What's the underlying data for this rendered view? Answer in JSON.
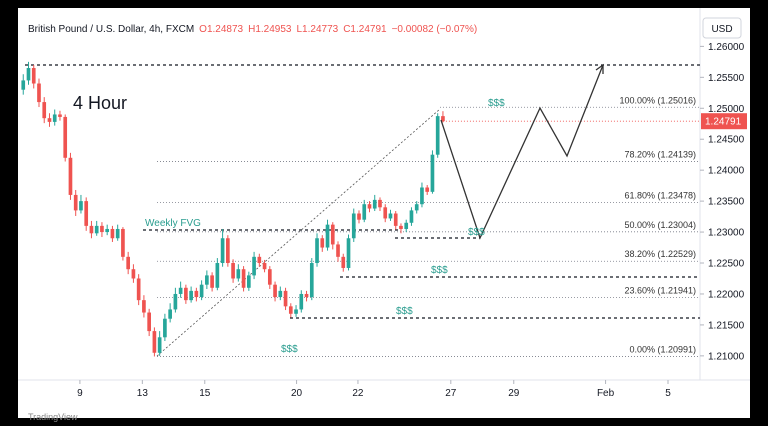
{
  "chart_data": {
    "type": "candlestick",
    "title": "British Pound / U.S. Dollar, 4h, FXCM",
    "subtitle": [
      "O1.24873",
      "H1.24953",
      "L1.24773",
      "C1.24791",
      "−0.00082 (−0.07%)"
    ],
    "currency": "USD",
    "timeframe_label": "4 Hour",
    "watermark": "TradingView",
    "up_color": "#26a69a",
    "down_color": "#ef5350",
    "open": [
      1.253,
      1.2545,
      1.2565,
      1.254,
      1.251,
      1.2484,
      1.2478,
      1.249,
      1.2486,
      1.242,
      1.236,
      1.2335,
      1.235,
      1.231,
      1.2298,
      1.231,
      1.23,
      1.2305,
      1.229,
      1.2305,
      1.226,
      1.224,
      1.2225,
      1.219,
      1.217,
      1.214,
      1.2105,
      1.213,
      1.216,
      1.2175,
      1.22,
      1.221,
      1.219,
      1.2205,
      1.2195,
      1.2215,
      1.223,
      1.221,
      1.225,
      1.229,
      1.225,
      1.2225,
      1.224,
      1.221,
      1.223,
      1.226,
      1.225,
      1.224,
      1.2215,
      1.2195,
      1.2205,
      1.218,
      1.2168,
      1.2175,
      1.22,
      1.2195,
      1.225,
      1.229,
      1.2275,
      1.2312,
      1.228,
      1.226,
      1.2242,
      1.229,
      1.233,
      1.232,
      1.2345,
      1.2338,
      1.2352,
      1.234,
      1.2322,
      1.233,
      1.231,
      1.2305,
      1.2315,
      1.2335,
      1.2345,
      1.2372,
      1.2365,
      1.2425,
      1.24873
    ],
    "high": [
      1.2555,
      1.2575,
      1.257,
      1.2548,
      1.2518,
      1.2492,
      1.2498,
      1.2496,
      1.249,
      1.2428,
      1.2368,
      1.236,
      1.2356,
      1.2318,
      1.2318,
      1.2316,
      1.2312,
      1.231,
      1.2312,
      1.2308,
      1.2268,
      1.2248,
      1.2232,
      1.2198,
      1.2176,
      1.2146,
      1.214,
      1.2168,
      1.2185,
      1.221,
      1.222,
      1.2215,
      1.2212,
      1.221,
      1.2222,
      1.2238,
      1.2235,
      1.2258,
      1.2305,
      1.2295,
      1.2256,
      1.2248,
      1.2245,
      1.2236,
      1.2268,
      1.2265,
      1.2255,
      1.2245,
      1.222,
      1.2212,
      1.221,
      1.2185,
      1.2182,
      1.2206,
      1.2205,
      1.2258,
      1.2298,
      1.2295,
      1.232,
      1.2316,
      1.2285,
      1.2265,
      1.2296,
      1.2338,
      1.2335,
      1.2352,
      1.235,
      1.236,
      1.2356,
      1.2345,
      1.2336,
      1.2334,
      1.2314,
      1.232,
      1.234,
      1.235,
      1.238,
      1.2376,
      1.2432,
      1.2492,
      1.24953
    ],
    "low": [
      1.2522,
      1.2538,
      1.2532,
      1.2502,
      1.2476,
      1.247,
      1.2472,
      1.248,
      1.2414,
      1.2352,
      1.2326,
      1.233,
      1.2302,
      1.229,
      1.2294,
      1.2292,
      1.2295,
      1.2284,
      1.2286,
      1.2254,
      1.2232,
      1.2218,
      1.2182,
      1.2162,
      1.2132,
      1.2099,
      1.21,
      1.2124,
      1.2154,
      1.217,
      1.2194,
      1.2184,
      1.2186,
      1.2188,
      1.219,
      1.2208,
      1.2204,
      1.2206,
      1.2244,
      1.2244,
      1.2218,
      1.222,
      1.2204,
      1.2205,
      1.2224,
      1.2244,
      1.2235,
      1.2208,
      1.2188,
      1.219,
      1.2174,
      1.2162,
      1.2163,
      1.217,
      1.2188,
      1.219,
      1.2244,
      1.2268,
      1.227,
      1.2272,
      1.2252,
      1.2236,
      1.2238,
      1.2284,
      1.2314,
      1.2316,
      1.2332,
      1.2334,
      1.2334,
      1.2316,
      1.2318,
      1.2304,
      1.2298,
      1.23,
      1.231,
      1.233,
      1.234,
      1.236,
      1.2362,
      1.242,
      1.24773
    ],
    "close": [
      1.2545,
      1.2565,
      1.254,
      1.251,
      1.2484,
      1.2478,
      1.249,
      1.2486,
      1.242,
      1.236,
      1.2335,
      1.235,
      1.231,
      1.2298,
      1.231,
      1.23,
      1.2305,
      1.229,
      1.2305,
      1.226,
      1.224,
      1.2225,
      1.219,
      1.217,
      1.214,
      1.2105,
      1.213,
      1.216,
      1.2175,
      1.22,
      1.221,
      1.219,
      1.2205,
      1.2195,
      1.2215,
      1.223,
      1.221,
      1.225,
      1.229,
      1.225,
      1.2225,
      1.224,
      1.221,
      1.223,
      1.226,
      1.225,
      1.224,
      1.2215,
      1.2195,
      1.2205,
      1.218,
      1.2168,
      1.2175,
      1.22,
      1.2195,
      1.225,
      1.229,
      1.2275,
      1.2312,
      1.228,
      1.226,
      1.2242,
      1.229,
      1.233,
      1.232,
      1.2345,
      1.2338,
      1.2352,
      1.234,
      1.2322,
      1.233,
      1.231,
      1.2305,
      1.2315,
      1.2335,
      1.2345,
      1.2372,
      1.2365,
      1.2425,
      1.24873,
      1.24791
    ],
    "last_price": 1.24791,
    "xlim": [
      -1,
      129
    ],
    "xticks": [
      {
        "value": 10.8,
        "label": "9"
      },
      {
        "value": 22.7,
        "label": "13"
      },
      {
        "value": 34.6,
        "label": "15"
      },
      {
        "value": 52.1,
        "label": "20"
      },
      {
        "value": 63.8,
        "label": "22"
      },
      {
        "value": 81.5,
        "label": "27"
      },
      {
        "value": 93.5,
        "label": "29"
      },
      {
        "value": 111,
        "label": "Feb"
      },
      {
        "value": 122.9,
        "label": "5"
      }
    ],
    "ylim": [
      1.2061,
      1.2662
    ],
    "yticks": [
      {
        "value": 1.21,
        "label": "1.21000"
      },
      {
        "value": 1.215,
        "label": "1.21500"
      },
      {
        "value": 1.22,
        "label": "1.22000"
      },
      {
        "value": 1.225,
        "label": "1.22500"
      },
      {
        "value": 1.23,
        "label": "1.23000"
      },
      {
        "value": 1.235,
        "label": "1.23500"
      },
      {
        "value": 1.24,
        "label": "1.24000"
      },
      {
        "value": 1.245,
        "label": "1.24500"
      },
      {
        "value": 1.25,
        "label": "1.25000"
      },
      {
        "value": 1.255,
        "label": "1.25500"
      },
      {
        "value": 1.26,
        "label": "1.26000"
      }
    ],
    "fib_levels": [
      {
        "value": 1.25016,
        "label": "100.00% (1.25016)"
      },
      {
        "value": 1.24139,
        "label": "78.20% (1.24139)"
      },
      {
        "value": 1.23478,
        "label": "61.80% (1.23478)"
      },
      {
        "value": 1.23004,
        "label": "50.00% (1.23004)"
      },
      {
        "value": 1.22529,
        "label": "38.20% (1.22529)"
      },
      {
        "value": 1.21941,
        "label": "23.60% (1.21941)"
      },
      {
        "value": 1.20991,
        "label": "0.00% (1.20991)"
      }
    ],
    "annotations": [
      "Weekly FVG",
      "$$$",
      "$$$",
      "$$$",
      "$$$",
      "$$$"
    ]
  }
}
